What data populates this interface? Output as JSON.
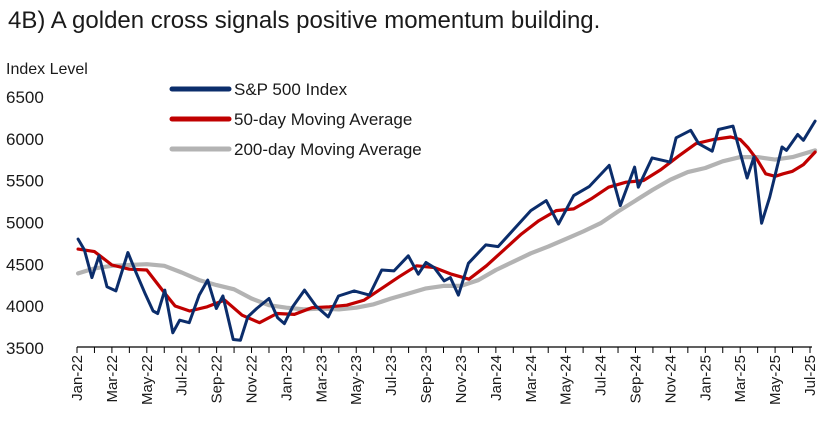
{
  "chart_data": {
    "type": "line",
    "title": "4B) A golden cross signals positive momentum building.",
    "ylabel": "Index Level",
    "xlabel": "",
    "ylim": [
      3500,
      6500
    ],
    "yticks": [
      3500,
      4000,
      4500,
      5000,
      5500,
      6000,
      6500
    ],
    "x_range": [
      "2022-01",
      "2025-07"
    ],
    "x_ticks": [
      "Jan-22",
      "Mar-22",
      "May-22",
      "Jul-22",
      "Sep-22",
      "Nov-22",
      "Jan-23",
      "Mar-23",
      "May-23",
      "Jul-23",
      "Sep-23",
      "Nov-23",
      "Jan-24",
      "Mar-24",
      "May-24",
      "Jul-24",
      "Sep-24",
      "Nov-24",
      "Jan-25",
      "Mar-25",
      "May-25",
      "Jul-25"
    ],
    "grid": false,
    "legend_position": "top-left",
    "series": [
      {
        "name": "S&P 500 Index",
        "color": "#0b2d6b",
        "points": [
          [
            "2022-01-03",
            4790
          ],
          [
            "2022-01-14",
            4660
          ],
          [
            "2022-01-27",
            4330
          ],
          [
            "2022-02-09",
            4590
          ],
          [
            "2022-02-23",
            4220
          ],
          [
            "2022-03-08",
            4170
          ],
          [
            "2022-03-29",
            4630
          ],
          [
            "2022-04-12",
            4400
          ],
          [
            "2022-04-29",
            4130
          ],
          [
            "2022-05-12",
            3930
          ],
          [
            "2022-05-20",
            3900
          ],
          [
            "2022-06-02",
            4180
          ],
          [
            "2022-06-16",
            3670
          ],
          [
            "2022-06-28",
            3820
          ],
          [
            "2022-07-14",
            3790
          ],
          [
            "2022-08-01",
            4120
          ],
          [
            "2022-08-16",
            4300
          ],
          [
            "2022-08-31",
            3960
          ],
          [
            "2022-09-12",
            4110
          ],
          [
            "2022-09-30",
            3590
          ],
          [
            "2022-10-12",
            3580
          ],
          [
            "2022-10-25",
            3860
          ],
          [
            "2022-11-10",
            3960
          ],
          [
            "2022-12-01",
            4080
          ],
          [
            "2022-12-16",
            3850
          ],
          [
            "2022-12-28",
            3780
          ],
          [
            "2023-01-12",
            3980
          ],
          [
            "2023-02-02",
            4180
          ],
          [
            "2023-02-22",
            3990
          ],
          [
            "2023-03-13",
            3860
          ],
          [
            "2023-03-31",
            4110
          ],
          [
            "2023-04-28",
            4170
          ],
          [
            "2023-05-24",
            4120
          ],
          [
            "2023-06-15",
            4420
          ],
          [
            "2023-07-06",
            4410
          ],
          [
            "2023-07-31",
            4590
          ],
          [
            "2023-08-18",
            4370
          ],
          [
            "2023-09-01",
            4510
          ],
          [
            "2023-09-15",
            4450
          ],
          [
            "2023-10-02",
            4290
          ],
          [
            "2023-10-13",
            4330
          ],
          [
            "2023-10-27",
            4120
          ],
          [
            "2023-11-14",
            4500
          ],
          [
            "2023-12-14",
            4720
          ],
          [
            "2024-01-05",
            4700
          ],
          [
            "2024-02-01",
            4900
          ],
          [
            "2024-03-01",
            5130
          ],
          [
            "2024-03-28",
            5250
          ],
          [
            "2024-04-19",
            4970
          ],
          [
            "2024-05-15",
            5310
          ],
          [
            "2024-06-12",
            5420
          ],
          [
            "2024-07-16",
            5670
          ],
          [
            "2024-08-05",
            5190
          ],
          [
            "2024-08-30",
            5650
          ],
          [
            "2024-09-06",
            5410
          ],
          [
            "2024-09-30",
            5760
          ],
          [
            "2024-10-31",
            5710
          ],
          [
            "2024-11-11",
            6000
          ],
          [
            "2024-12-06",
            6090
          ],
          [
            "2024-12-20",
            5930
          ],
          [
            "2025-01-13",
            5840
          ],
          [
            "2025-01-24",
            6100
          ],
          [
            "2025-02-19",
            6140
          ],
          [
            "2025-03-13",
            5520
          ],
          [
            "2025-03-25",
            5770
          ],
          [
            "2025-04-08",
            4980
          ],
          [
            "2025-04-22",
            5290
          ],
          [
            "2025-05-13",
            5890
          ],
          [
            "2025-05-21",
            5850
          ],
          [
            "2025-06-10",
            6040
          ],
          [
            "2025-06-20",
            5970
          ],
          [
            "2025-07-10",
            6200
          ]
        ]
      },
      {
        "name": "50-day Moving Average",
        "color": "#c00000",
        "points": [
          [
            "2022-01-03",
            4670
          ],
          [
            "2022-02-01",
            4640
          ],
          [
            "2022-03-01",
            4480
          ],
          [
            "2022-04-01",
            4430
          ],
          [
            "2022-05-01",
            4420
          ],
          [
            "2022-06-01",
            4150
          ],
          [
            "2022-06-20",
            3990
          ],
          [
            "2022-07-15",
            3930
          ],
          [
            "2022-08-15",
            3980
          ],
          [
            "2022-09-15",
            4060
          ],
          [
            "2022-10-15",
            3880
          ],
          [
            "2022-11-15",
            3790
          ],
          [
            "2022-12-15",
            3900
          ],
          [
            "2023-01-15",
            3890
          ],
          [
            "2023-02-15",
            3970
          ],
          [
            "2023-03-15",
            3980
          ],
          [
            "2023-04-15",
            4000
          ],
          [
            "2023-05-15",
            4060
          ],
          [
            "2023-06-15",
            4200
          ],
          [
            "2023-07-15",
            4340
          ],
          [
            "2023-08-15",
            4470
          ],
          [
            "2023-09-15",
            4450
          ],
          [
            "2023-10-15",
            4370
          ],
          [
            "2023-11-15",
            4310
          ],
          [
            "2023-12-15",
            4470
          ],
          [
            "2024-01-15",
            4660
          ],
          [
            "2024-02-15",
            4850
          ],
          [
            "2024-03-15",
            5010
          ],
          [
            "2024-04-15",
            5130
          ],
          [
            "2024-05-15",
            5150
          ],
          [
            "2024-06-15",
            5270
          ],
          [
            "2024-07-15",
            5410
          ],
          [
            "2024-08-15",
            5470
          ],
          [
            "2024-09-15",
            5490
          ],
          [
            "2024-10-15",
            5620
          ],
          [
            "2024-11-15",
            5780
          ],
          [
            "2024-12-15",
            5930
          ],
          [
            "2025-01-15",
            5980
          ],
          [
            "2025-02-15",
            6010
          ],
          [
            "2025-03-01",
            5980
          ],
          [
            "2025-03-15",
            5880
          ],
          [
            "2025-04-01",
            5730
          ],
          [
            "2025-04-15",
            5570
          ],
          [
            "2025-05-01",
            5540
          ],
          [
            "2025-05-15",
            5570
          ],
          [
            "2025-06-01",
            5600
          ],
          [
            "2025-06-20",
            5680
          ],
          [
            "2025-07-10",
            5830
          ]
        ]
      },
      {
        "name": "200-day Moving Average",
        "color": "#b3b3b3",
        "points": [
          [
            "2022-01-03",
            4380
          ],
          [
            "2022-02-01",
            4440
          ],
          [
            "2022-03-01",
            4470
          ],
          [
            "2022-04-01",
            4480
          ],
          [
            "2022-05-01",
            4490
          ],
          [
            "2022-06-01",
            4470
          ],
          [
            "2022-07-01",
            4390
          ],
          [
            "2022-08-01",
            4300
          ],
          [
            "2022-09-01",
            4240
          ],
          [
            "2022-10-01",
            4190
          ],
          [
            "2022-11-01",
            4080
          ],
          [
            "2022-12-01",
            4000
          ],
          [
            "2023-01-01",
            3970
          ],
          [
            "2023-02-01",
            3950
          ],
          [
            "2023-03-01",
            3960
          ],
          [
            "2023-04-01",
            3950
          ],
          [
            "2023-05-01",
            3970
          ],
          [
            "2023-06-01",
            4010
          ],
          [
            "2023-07-01",
            4080
          ],
          [
            "2023-08-01",
            4140
          ],
          [
            "2023-09-01",
            4200
          ],
          [
            "2023-10-01",
            4230
          ],
          [
            "2023-11-01",
            4230
          ],
          [
            "2023-12-01",
            4300
          ],
          [
            "2024-01-01",
            4420
          ],
          [
            "2024-02-01",
            4520
          ],
          [
            "2024-03-01",
            4620
          ],
          [
            "2024-04-01",
            4700
          ],
          [
            "2024-05-01",
            4790
          ],
          [
            "2024-06-01",
            4880
          ],
          [
            "2024-07-01",
            4980
          ],
          [
            "2024-08-01",
            5120
          ],
          [
            "2024-09-01",
            5250
          ],
          [
            "2024-10-01",
            5380
          ],
          [
            "2024-11-01",
            5500
          ],
          [
            "2024-12-01",
            5590
          ],
          [
            "2025-01-01",
            5640
          ],
          [
            "2025-02-01",
            5720
          ],
          [
            "2025-03-01",
            5770
          ],
          [
            "2025-04-01",
            5770
          ],
          [
            "2025-05-01",
            5740
          ],
          [
            "2025-06-01",
            5770
          ],
          [
            "2025-07-10",
            5850
          ]
        ]
      }
    ]
  }
}
